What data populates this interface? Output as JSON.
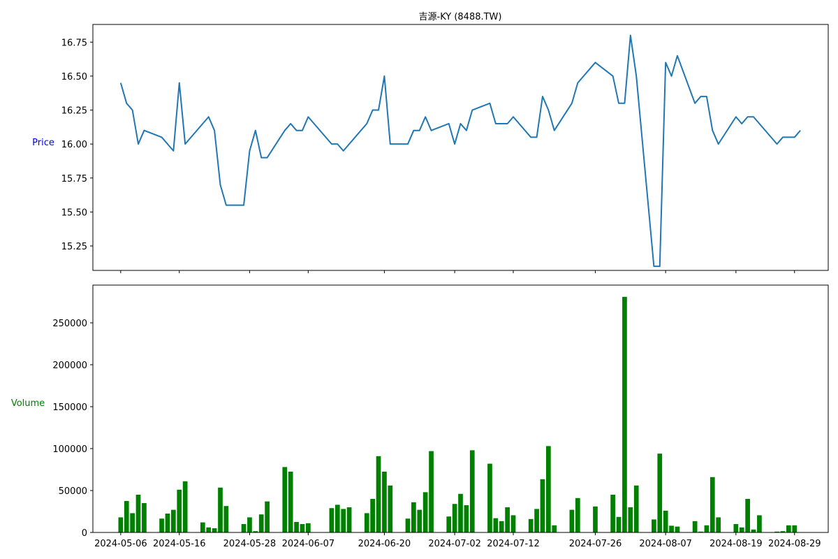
{
  "title": "吉源-KY (8488.TW)",
  "colors": {
    "price_line": "#1f77b4",
    "volume_bar": "#008000",
    "price_label": "#0000ff",
    "volume_label": "#008000",
    "axis": "#000000"
  },
  "chart_data": [
    {
      "type": "line",
      "ylabel": "Price",
      "ylim": [
        15.07,
        16.88
      ],
      "yticks": [
        "15.25",
        "15.50",
        "15.75",
        "16.00",
        "16.25",
        "16.50",
        "16.75"
      ],
      "grid": false,
      "series": [
        {
          "x": [
            "2024-05-06",
            "2024-05-07",
            "2024-05-08",
            "2024-05-09",
            "2024-05-10",
            "2024-05-13",
            "2024-05-15",
            "2024-05-16",
            "2024-05-17",
            "2024-05-21",
            "2024-05-22",
            "2024-05-23",
            "2024-05-24",
            "2024-05-27",
            "2024-05-28",
            "2024-05-29",
            "2024-05-30",
            "2024-05-31",
            "2024-06-03",
            "2024-06-04",
            "2024-06-05",
            "2024-06-06",
            "2024-06-07",
            "2024-06-11",
            "2024-06-12",
            "2024-06-13",
            "2024-06-17",
            "2024-06-18",
            "2024-06-19",
            "2024-06-20",
            "2024-06-21",
            "2024-06-24",
            "2024-06-25",
            "2024-06-26",
            "2024-06-27",
            "2024-06-28",
            "2024-07-01",
            "2024-07-02",
            "2024-07-03",
            "2024-07-04",
            "2024-07-05",
            "2024-07-08",
            "2024-07-09",
            "2024-07-10",
            "2024-07-11",
            "2024-07-12",
            "2024-07-15",
            "2024-07-16",
            "2024-07-17",
            "2024-07-18",
            "2024-07-19",
            "2024-07-22",
            "2024-07-23",
            "2024-07-26",
            "2024-07-29",
            "2024-07-30",
            "2024-07-31",
            "2024-08-01",
            "2024-08-02",
            "2024-08-05",
            "2024-08-06",
            "2024-08-07",
            "2024-08-08",
            "2024-08-09",
            "2024-08-12",
            "2024-08-13",
            "2024-08-14",
            "2024-08-15",
            "2024-08-16",
            "2024-08-19",
            "2024-08-20",
            "2024-08-21",
            "2024-08-22",
            "2024-08-26",
            "2024-08-27",
            "2024-08-29",
            "2024-08-30"
          ],
          "values": [
            16.45,
            16.3,
            16.25,
            16.0,
            16.1,
            16.05,
            15.95,
            16.45,
            16.0,
            16.2,
            16.1,
            15.7,
            15.55,
            15.55,
            15.95,
            16.1,
            15.9,
            15.9,
            16.1,
            16.15,
            16.1,
            16.1,
            16.2,
            16.0,
            16.0,
            15.95,
            16.15,
            16.25,
            16.25,
            16.5,
            16.0,
            16.0,
            16.1,
            16.1,
            16.2,
            16.1,
            16.15,
            16.0,
            16.15,
            16.1,
            16.25,
            16.3,
            16.15,
            16.15,
            16.15,
            16.2,
            16.05,
            16.05,
            16.35,
            16.25,
            16.1,
            16.3,
            16.45,
            16.6,
            16.5,
            16.3,
            16.3,
            16.8,
            16.5,
            15.1,
            15.1,
            16.6,
            16.5,
            16.65,
            16.3,
            16.35,
            16.35,
            16.1,
            16.0,
            16.2,
            16.15,
            16.2,
            16.2,
            16.0,
            16.05,
            16.05,
            16.1
          ]
        }
      ]
    },
    {
      "type": "bar",
      "ylabel": "Volume",
      "ylim": [
        0,
        295000
      ],
      "yticks": [
        "0",
        "50000",
        "100000",
        "150000",
        "200000",
        "250000"
      ],
      "xticks": [
        "2024-05-06",
        "2024-05-16",
        "2024-05-28",
        "2024-06-07",
        "2024-06-20",
        "2024-07-02",
        "2024-07-12",
        "2024-07-26",
        "2024-08-07",
        "2024-08-19",
        "2024-08-29"
      ],
      "grid": false,
      "series": [
        {
          "x": [
            "2024-05-06",
            "2024-05-07",
            "2024-05-08",
            "2024-05-09",
            "2024-05-10",
            "2024-05-13",
            "2024-05-14",
            "2024-05-15",
            "2024-05-16",
            "2024-05-17",
            "2024-05-20",
            "2024-05-21",
            "2024-05-22",
            "2024-05-23",
            "2024-05-24",
            "2024-05-27",
            "2024-05-28",
            "2024-05-29",
            "2024-05-30",
            "2024-05-31",
            "2024-06-03",
            "2024-06-04",
            "2024-06-05",
            "2024-06-06",
            "2024-06-07",
            "2024-06-11",
            "2024-06-12",
            "2024-06-13",
            "2024-06-14",
            "2024-06-17",
            "2024-06-18",
            "2024-06-19",
            "2024-06-20",
            "2024-06-21",
            "2024-06-24",
            "2024-06-25",
            "2024-06-26",
            "2024-06-27",
            "2024-06-28",
            "2024-07-01",
            "2024-07-02",
            "2024-07-03",
            "2024-07-04",
            "2024-07-05",
            "2024-07-08",
            "2024-07-09",
            "2024-07-10",
            "2024-07-11",
            "2024-07-12",
            "2024-07-15",
            "2024-07-16",
            "2024-07-17",
            "2024-07-18",
            "2024-07-19",
            "2024-07-22",
            "2024-07-23",
            "2024-07-26",
            "2024-07-29",
            "2024-07-30",
            "2024-07-31",
            "2024-08-01",
            "2024-08-02",
            "2024-08-05",
            "2024-08-06",
            "2024-08-07",
            "2024-08-08",
            "2024-08-09",
            "2024-08-12",
            "2024-08-13",
            "2024-08-14",
            "2024-08-15",
            "2024-08-16",
            "2024-08-19",
            "2024-08-20",
            "2024-08-21",
            "2024-08-22",
            "2024-08-23",
            "2024-08-26",
            "2024-08-27",
            "2024-08-28",
            "2024-08-29",
            "2024-08-30"
          ],
          "values": [
            18000,
            37500,
            23000,
            45000,
            35000,
            16500,
            22500,
            27000,
            51000,
            61000,
            12000,
            6000,
            5000,
            53500,
            31500,
            10000,
            18000,
            1500,
            21500,
            37000,
            78000,
            72500,
            12500,
            10000,
            11000,
            29000,
            33000,
            28000,
            30000,
            23000,
            40000,
            91000,
            72500,
            56000,
            16500,
            36000,
            27000,
            48000,
            97000,
            19000,
            34000,
            46000,
            32500,
            98000,
            82000,
            17000,
            13500,
            30000,
            20500,
            16000,
            28000,
            63500,
            103000,
            8500,
            27000,
            41000,
            31000,
            45000,
            18500,
            281000,
            30000,
            56000,
            15500,
            94000,
            26000,
            8000,
            7000,
            13500,
            1000,
            8500,
            66000,
            18000,
            10000,
            6000,
            40000,
            3500,
            20500,
            1000,
            1500,
            8500,
            8500,
            0
          ]
        }
      ]
    }
  ]
}
